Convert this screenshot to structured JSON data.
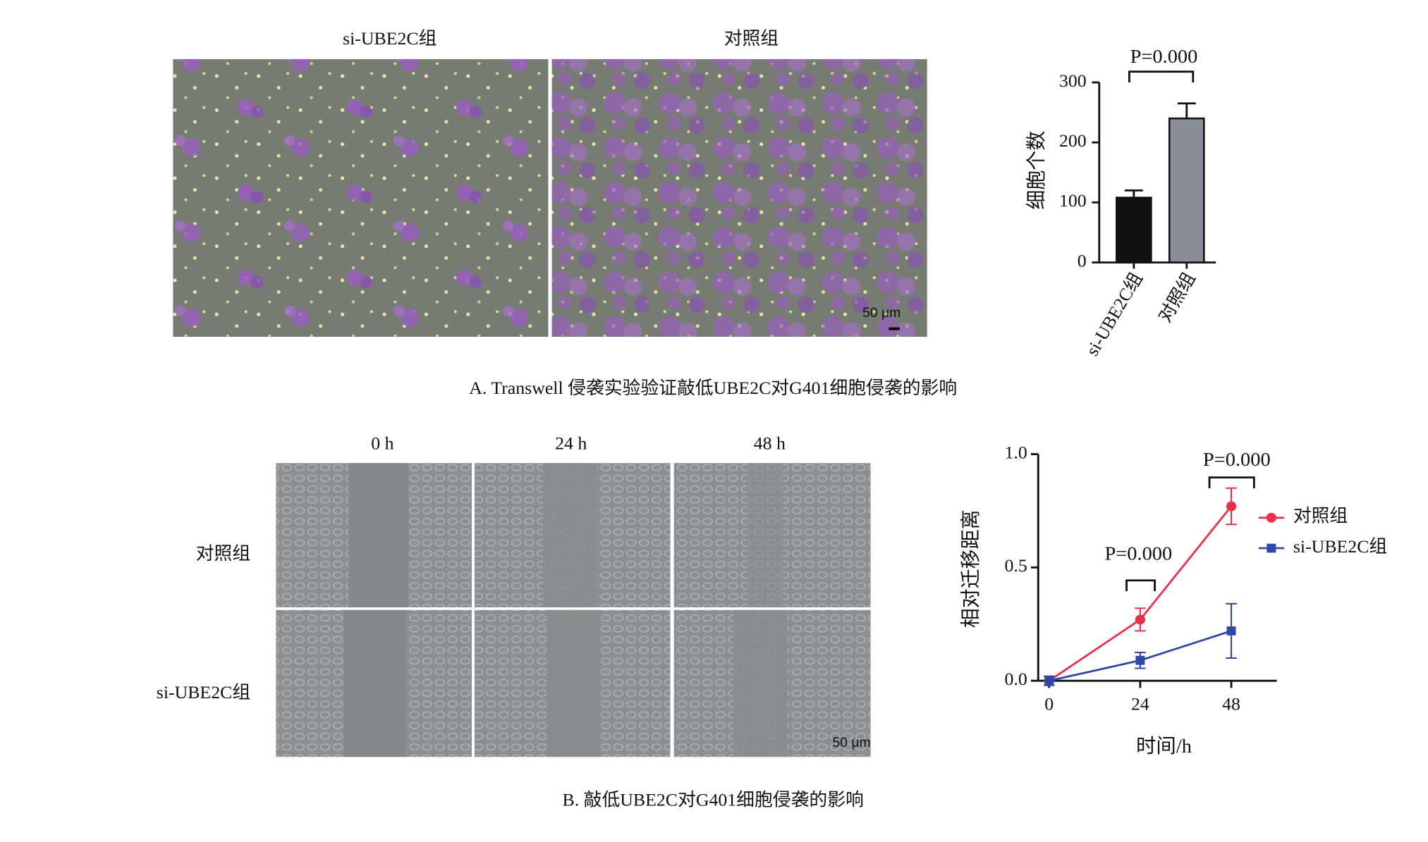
{
  "panel_a": {
    "image_labels": [
      "si-UBE2C组",
      "对照组"
    ],
    "scale_bar": "50 μm",
    "caption": "A. Transwell 侵袭实验验证敲低UBE2C对G401细胞侵袭的影响"
  },
  "panel_b": {
    "column_labels": [
      "0 h",
      "24 h",
      "48 h"
    ],
    "row_labels": [
      "对照组",
      "si-UBE2C组"
    ],
    "scale_bar": "50 μm",
    "caption": "B. 敲低UBE2C对G401细胞侵袭的影响"
  },
  "chart_data": [
    {
      "type": "bar",
      "y_label": "细胞个数",
      "categories": [
        "si-UBE2C组",
        "对照组"
      ],
      "values": [
        108,
        240
      ],
      "errors": [
        12,
        25
      ],
      "colors": [
        "#111111",
        "#8a8e96"
      ],
      "ylim": [
        0,
        300
      ],
      "yticks": [
        0,
        100,
        200,
        300
      ],
      "annotations": [
        "P=0.000"
      ]
    },
    {
      "type": "line",
      "x_label": "时间/h",
      "y_label": "相对迁移距离",
      "x": [
        0,
        24,
        48
      ],
      "xlim": [
        0,
        60
      ],
      "xticks": [
        0,
        24,
        48
      ],
      "ylim": [
        0,
        1
      ],
      "yticks": [
        {
          "value": 0,
          "label": "0.0"
        },
        {
          "value": 0.5,
          "label": "0.5"
        },
        {
          "value": 1,
          "label": "1.0"
        }
      ],
      "series": [
        {
          "name": "对照组",
          "color": "#e8304a",
          "marker": "circle",
          "values": [
            0,
            0.27,
            0.77
          ],
          "errors": [
            0.02,
            0.05,
            0.08
          ]
        },
        {
          "name": "si-UBE2C组",
          "color": "#2f48a8",
          "marker": "square",
          "values": [
            0,
            0.09,
            0.22
          ],
          "errors": [
            0.02,
            0.035,
            0.12
          ]
        }
      ],
      "annotations": [
        "P=0.000",
        "P=0.000"
      ]
    }
  ]
}
